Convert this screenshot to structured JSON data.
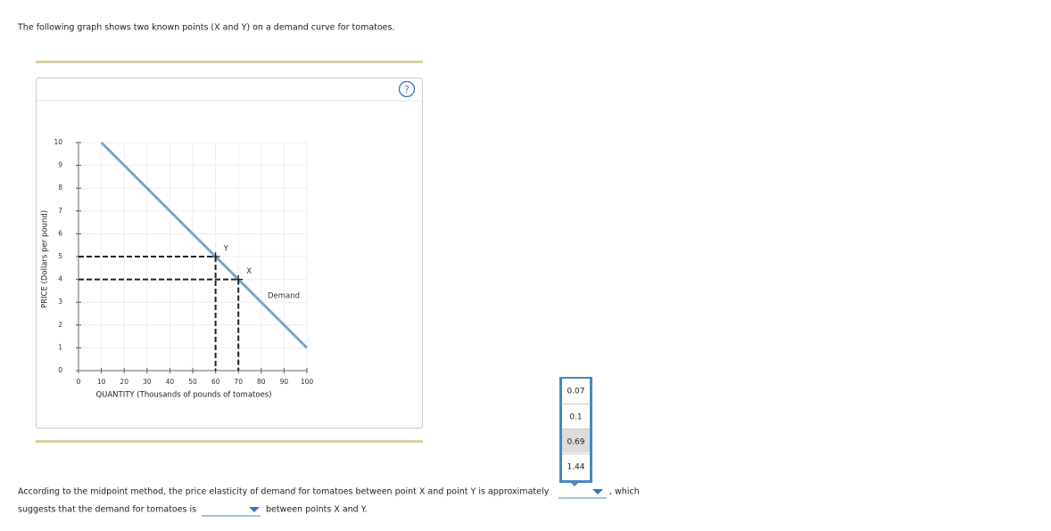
{
  "intro": "The following graph shows two known points (X and Y) on a demand curve for tomatoes.",
  "help_icon": "?",
  "chart_data": {
    "type": "line",
    "x": [
      10,
      100
    ],
    "series": [
      {
        "name": "Demand",
        "color": "#7ba4cf",
        "values": [
          10,
          1
        ]
      }
    ],
    "points": [
      {
        "label": "Y",
        "x": 60,
        "y": 5
      },
      {
        "label": "X",
        "x": 70,
        "y": 4
      }
    ],
    "xlabel": "QUANTITY (Thousands of pounds of tomatoes)",
    "ylabel": "PRICE (Dollars per pound)",
    "xlim": [
      0,
      100
    ],
    "ylim": [
      0,
      10
    ],
    "xticks": [
      0,
      10,
      20,
      30,
      40,
      50,
      60,
      70,
      80,
      90,
      100
    ],
    "yticks": [
      0,
      1,
      2,
      3,
      4,
      5,
      6,
      7,
      8,
      9,
      10
    ],
    "grid": true
  },
  "dropdown_options": [
    "0.07",
    "0.1",
    "0.69",
    "1.44"
  ],
  "question": {
    "part1": "According to the midpoint method, the price elasticity of demand for tomatoes between point X and point Y is approximately",
    "part2": ", which",
    "part3": "suggests that the demand for tomatoes is",
    "part4": "between points X and Y."
  }
}
